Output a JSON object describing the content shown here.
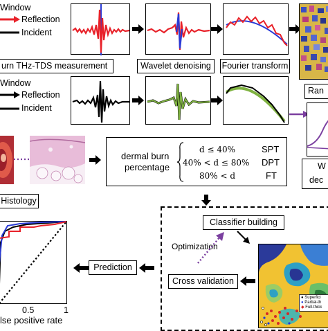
{
  "row1": {
    "window": "Window",
    "reflection": "Reflection",
    "incident": "Incident",
    "measurement": "urn THz-TDS measurement",
    "wavelet": "Wavelet denoising",
    "fourier": "Fourier transform"
  },
  "row2": {
    "window": "Window",
    "reflection": "Reflection",
    "incident": "Incident",
    "random_box": "Ran"
  },
  "right_cut": {
    "line1": "W",
    "line2": "dec"
  },
  "histology": {
    "label": "Histology"
  },
  "formula": {
    "title_line1": "dermal burn",
    "title_line2": "percentage",
    "case1": "d ≤ 40%",
    "case2": "40% < d ≤ 80%",
    "case3": "80% < d",
    "class1": "SPT",
    "class2": "DPT",
    "class3": "FT"
  },
  "ml": {
    "classifier": "Classifier building",
    "optimization": "Optimization",
    "cross_validation": "Cross validation",
    "prediction": "Prediction"
  },
  "roc": {
    "tick_05": "0.5",
    "tick_1": "1",
    "xlabel": "lse positive rate"
  },
  "scatter_legend": [
    "Superfici",
    "Partial-th",
    "Full-thick"
  ],
  "colors": {
    "reflection": "#e8222a",
    "incident": "#000000",
    "blue": "#2a3bd6",
    "green": "#7fb241",
    "purple": "#7b3fa0"
  }
}
